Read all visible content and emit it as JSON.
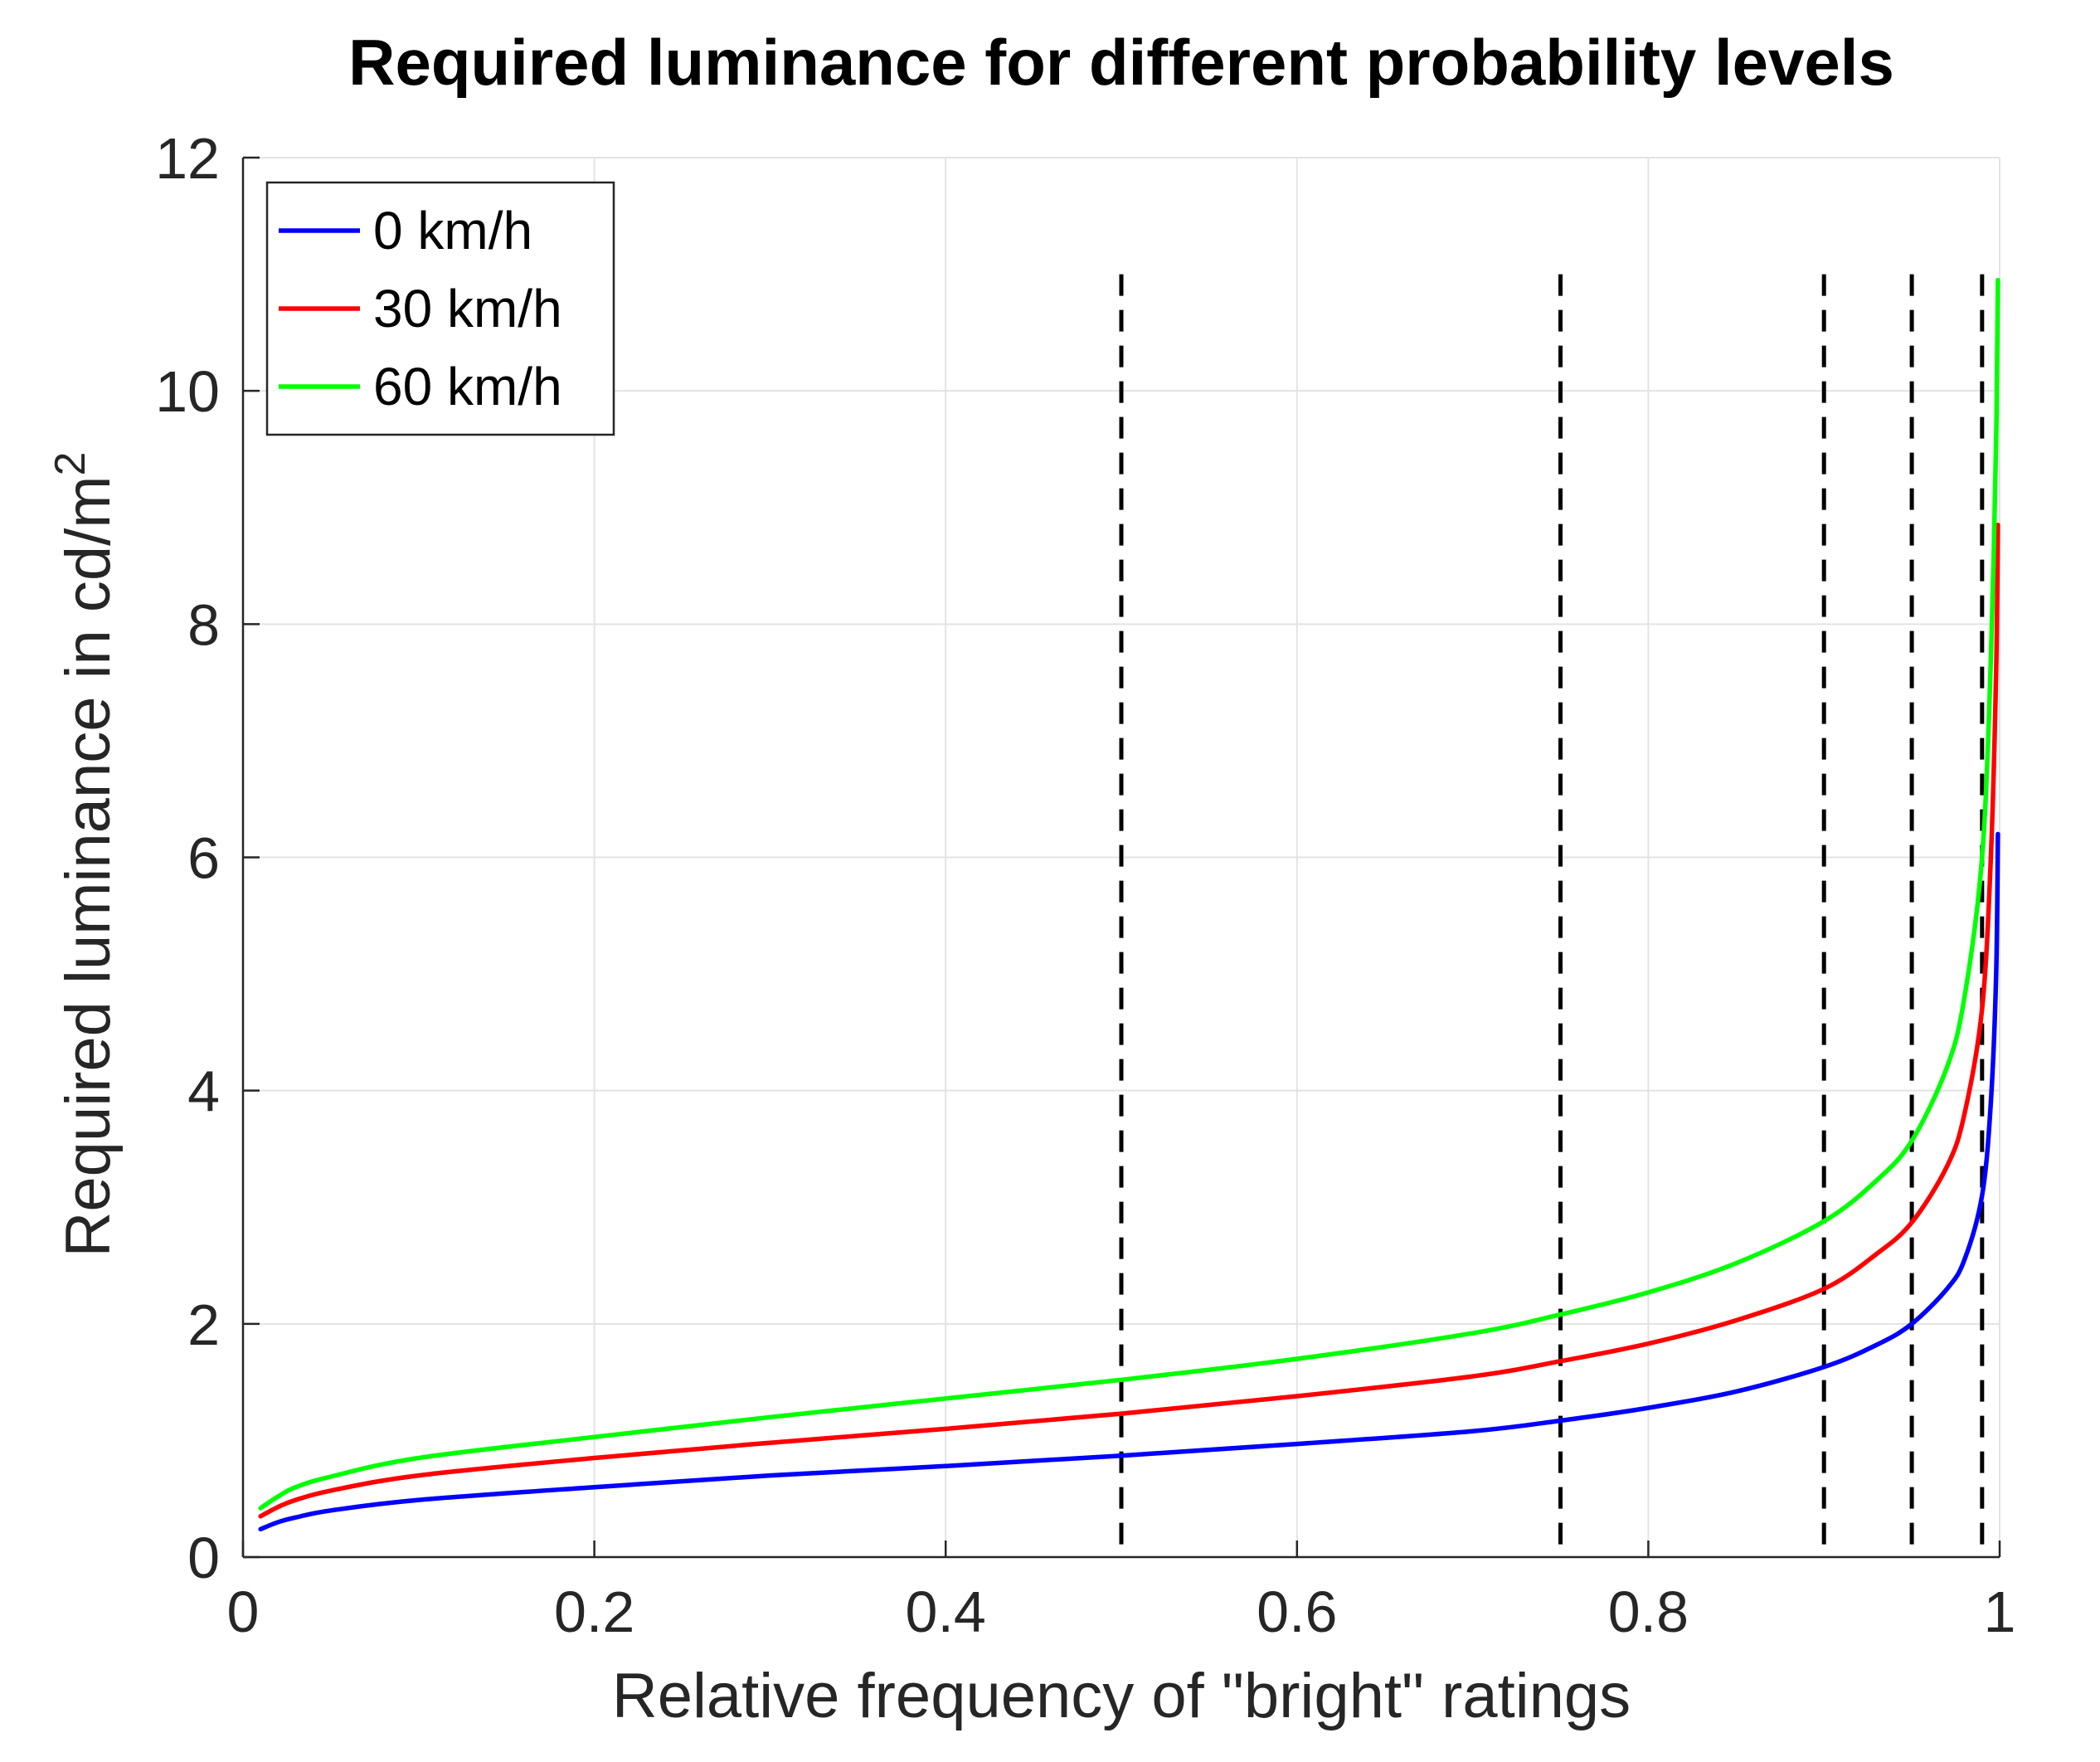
{
  "chart_data": {
    "type": "line",
    "title": "Required luminance for different probability levels",
    "xlabel": "Relative frequency of \"bright\" ratings",
    "ylabel_main": "Required luminance in cd/m",
    "ylabel_superscript": "2",
    "xlim": [
      0,
      1
    ],
    "ylim": [
      0,
      12
    ],
    "x_ticks": [
      0,
      0.2,
      0.4,
      0.6,
      0.8,
      1
    ],
    "x_tick_labels": [
      "0",
      "0.2",
      "0.4",
      "0.6",
      "0.8",
      "1"
    ],
    "y_ticks": [
      0,
      2,
      4,
      6,
      8,
      10,
      12
    ],
    "y_tick_labels": [
      "0",
      "2",
      "4",
      "6",
      "8",
      "10",
      "12"
    ],
    "grid": true,
    "legend_position": "top-left",
    "reference_lines": {
      "x": [
        0.5,
        0.75,
        0.9,
        0.95,
        0.99
      ],
      "y_range": [
        0,
        11
      ],
      "style": "dashed",
      "color": "#000000"
    },
    "x": [
      0.01,
      0.02,
      0.03,
      0.05,
      0.1,
      0.2,
      0.3,
      0.4,
      0.5,
      0.6,
      0.7,
      0.75,
      0.8,
      0.85,
      0.9,
      0.93,
      0.95,
      0.97,
      0.98,
      0.99,
      0.995,
      0.998,
      0.999
    ],
    "series": [
      {
        "name": "0 km/h",
        "color": "#0000ff",
        "values": [
          0.24,
          0.3,
          0.34,
          0.4,
          0.49,
          0.6,
          0.7,
          0.78,
          0.87,
          0.97,
          1.08,
          1.17,
          1.28,
          1.42,
          1.63,
          1.82,
          2.0,
          2.3,
          2.55,
          3.1,
          3.9,
          5.0,
          6.2
        ]
      },
      {
        "name": "30 km/h",
        "color": "#ff0000",
        "values": [
          0.35,
          0.43,
          0.49,
          0.57,
          0.7,
          0.85,
          0.98,
          1.1,
          1.23,
          1.38,
          1.55,
          1.68,
          1.83,
          2.03,
          2.3,
          2.6,
          2.87,
          3.35,
          3.8,
          4.7,
          6.0,
          7.6,
          8.85
        ]
      },
      {
        "name": "60 km/h",
        "color": "#00ff00",
        "values": [
          0.42,
          0.52,
          0.6,
          0.69,
          0.85,
          1.03,
          1.2,
          1.36,
          1.52,
          1.7,
          1.92,
          2.08,
          2.27,
          2.52,
          2.88,
          3.23,
          3.57,
          4.2,
          4.8,
          6.0,
          7.7,
          9.6,
          10.95
        ]
      }
    ]
  }
}
